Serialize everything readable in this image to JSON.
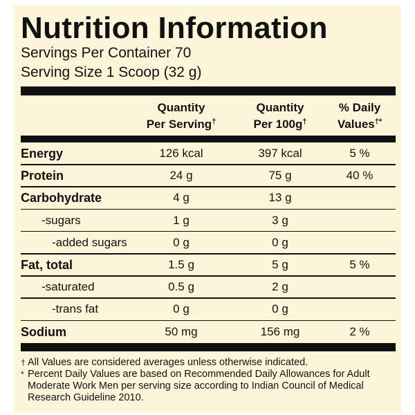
{
  "header": {
    "title": "Nutrition Information",
    "servings": "Servings Per Container 70",
    "serving_size": "Serving Size 1 Scoop (32 g)"
  },
  "table": {
    "columns": [
      {
        "line1": "Quantity",
        "line2": "Per Serving",
        "mark": "†"
      },
      {
        "line1": "Quantity",
        "line2": "Per 100g",
        "mark": "†"
      },
      {
        "line1": "% Daily",
        "line2": "Values",
        "mark": "†*"
      }
    ],
    "rows": [
      {
        "name": "Energy",
        "bold": true,
        "indent": 0,
        "cells": [
          "126 kcal",
          "397 kcal",
          "5 %"
        ]
      },
      {
        "name": "Protein",
        "bold": true,
        "indent": 0,
        "cells": [
          "24 g",
          "75 g",
          "40 %"
        ]
      },
      {
        "name": "Carbohydrate",
        "bold": true,
        "indent": 0,
        "cells": [
          "4 g",
          "13 g",
          null
        ]
      },
      {
        "name": "-sugars",
        "bold": false,
        "indent": 1,
        "cells": [
          "1 g",
          "3 g",
          null
        ]
      },
      {
        "name": "-added sugars",
        "bold": false,
        "indent": 2,
        "cells": [
          "0 g",
          "0 g",
          null
        ]
      },
      {
        "name": "Fat, total",
        "bold": true,
        "indent": 0,
        "cells": [
          "1.5 g",
          "5 g",
          "5 %"
        ]
      },
      {
        "name": "-saturated",
        "bold": false,
        "indent": 1,
        "cells": [
          "0.5 g",
          "2 g",
          null
        ]
      },
      {
        "name": "-trans fat",
        "bold": false,
        "indent": 2,
        "cells": [
          "0 g",
          "0 g",
          null
        ]
      },
      {
        "name": "Sodium",
        "bold": true,
        "indent": 0,
        "cells": [
          "50 mg",
          "156 mg",
          "2 %"
        ]
      }
    ]
  },
  "footnotes": [
    {
      "symbol": "†",
      "text": "All Values are considered averages unless otherwise indicated."
    },
    {
      "symbol": "*",
      "text": "Percent Daily Values are based on Recommended Daily Allowances for Adult Moderate Work Men per serving size according to Indian Council of Medical Research Guideline 2010."
    }
  ]
}
